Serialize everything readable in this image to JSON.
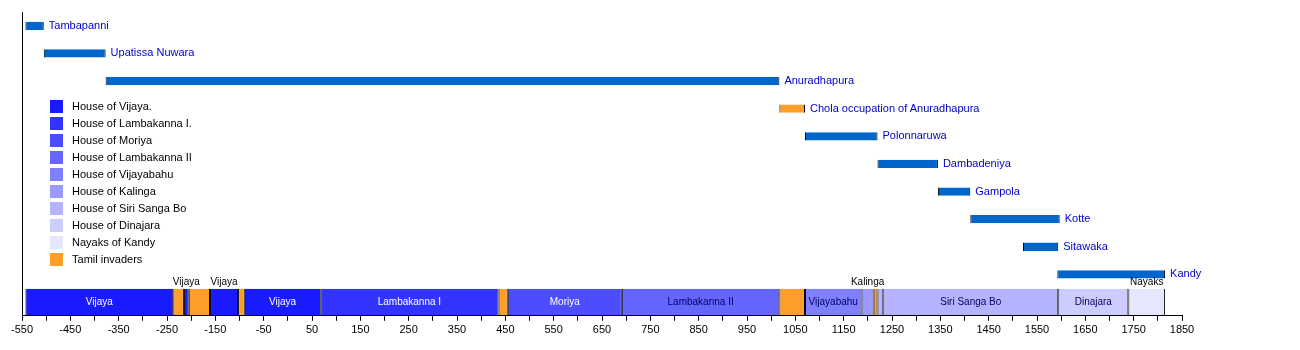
{
  "chart_data": {
    "type": "bar",
    "orientation": "horizontal",
    "categories": [
      "Tambapanni",
      "Upatissa Nuwara",
      "Anuradhapura",
      "Chola occupation of Anuradhapura",
      "Polonnaruwa",
      "Dambadeniya",
      "Gampola",
      "Kotte",
      "Sitawaka",
      "Kandy",
      null
    ],
    "xlim": [
      -550,
      1850
    ],
    "xticks": [
      -550,
      {
        "value": -500,
        "label": null
      },
      -450,
      {
        "value": -400,
        "label": null
      },
      -350,
      {
        "value": -300,
        "label": null
      },
      -250,
      {
        "value": -200,
        "label": null
      },
      -150,
      {
        "value": -100,
        "label": null
      },
      -50,
      {
        "value": 0,
        "label": null
      },
      50,
      {
        "value": 100,
        "label": null
      },
      150,
      {
        "value": 200,
        "label": null
      },
      250,
      {
        "value": 300,
        "label": null
      },
      350,
      {
        "value": 400,
        "label": null
      },
      450,
      {
        "value": 500,
        "label": null
      },
      550,
      {
        "value": 600,
        "label": null
      },
      650,
      {
        "value": 700,
        "label": null
      },
      750,
      {
        "value": 800,
        "label": null
      },
      850,
      {
        "value": 900,
        "label": null
      },
      950,
      {
        "value": 1000,
        "label": null
      },
      1050,
      {
        "value": 1100,
        "label": null
      },
      1150,
      {
        "value": 1200,
        "label": null
      },
      1250,
      {
        "value": 1300,
        "label": null
      },
      1350,
      {
        "value": 1400,
        "label": null
      },
      1450,
      {
        "value": 1500,
        "label": null
      },
      1550,
      {
        "value": 1600,
        "label": null
      },
      1650,
      {
        "value": 1700,
        "label": null
      },
      1750,
      {
        "value": 1800,
        "label": null
      },
      1850
    ],
    "grid": false,
    "legend": "left",
    "series": [
      {
        "colors": [
          "#0066cc",
          "#0066cc",
          "#0066cc",
          "#ff9f2a",
          "#0066cc",
          "#0066cc",
          "#0066cc",
          "#0066cc",
          "#0066cc",
          "#0066cc",
          null
        ],
        "base": [
          -543,
          -505,
          -377,
          1017,
          1070,
          1220,
          1345,
          1412,
          1521,
          1592,
          null
        ],
        "values": [
          38,
          128,
          1394,
          53,
          150,
          125,
          67,
          185,
          73,
          223,
          null
        ]
      },
      {
        "name": "House of Vijaya.",
        "color": "#1a1aff",
        "base": [
          null,
          null,
          null,
          null,
          null,
          null,
          null,
          null,
          null,
          null,
          -543
        ],
        "values": [
          null,
          null,
          null,
          null,
          null,
          null,
          null,
          null,
          null,
          null,
          306
        ],
        "value_labels": [
          null,
          null,
          null,
          null,
          null,
          null,
          null,
          null,
          null,
          null,
          "Vijaya"
        ]
      },
      {
        "name": "House of Lambakanna I.",
        "color": "#3333ff",
        "base": [
          null,
          null,
          null,
          null,
          null,
          null,
          null,
          null,
          null,
          null,
          67
        ],
        "values": [
          null,
          null,
          null,
          null,
          null,
          null,
          null,
          null,
          null,
          null,
          369
        ],
        "value_labels": [
          null,
          null,
          null,
          null,
          null,
          null,
          null,
          null,
          null,
          null,
          "Lambakanna I"
        ]
      },
      {
        "name": "House of Moriya",
        "color": "#4d4dff",
        "base": [
          null,
          null,
          null,
          null,
          null,
          null,
          null,
          null,
          null,
          null,
          455
        ],
        "values": [
          null,
          null,
          null,
          null,
          null,
          null,
          null,
          null,
          null,
          null,
          236
        ],
        "value_labels": [
          null,
          null,
          null,
          null,
          null,
          null,
          null,
          null,
          null,
          null,
          "Moriya"
        ]
      },
      {
        "name": "House of Lambakanna II",
        "color": "#6666ff",
        "base": [
          null,
          null,
          null,
          null,
          null,
          null,
          null,
          null,
          null,
          null,
          691
        ],
        "values": [
          null,
          null,
          null,
          null,
          null,
          null,
          null,
          null,
          null,
          null,
          326
        ],
        "value_labels": [
          null,
          null,
          null,
          null,
          null,
          null,
          null,
          null,
          null,
          null,
          "Lambakanna II"
        ]
      },
      {
        "name": "House of Vijayabahu",
        "color": "#8080ff",
        "base": [
          null,
          null,
          null,
          null,
          null,
          null,
          null,
          null,
          null,
          null,
          1070
        ],
        "values": [
          null,
          null,
          null,
          null,
          null,
          null,
          null,
          null,
          null,
          null,
          117
        ],
        "value_labels": [
          null,
          null,
          null,
          null,
          null,
          null,
          null,
          null,
          null,
          null,
          "Vijayabahu"
        ]
      },
      {
        "name": "House of Kalinga",
        "color": "#9999ff",
        "base": [
          null,
          null,
          null,
          null,
          null,
          null,
          null,
          null,
          null,
          null,
          1187
        ],
        "values": [
          null,
          null,
          null,
          null,
          null,
          null,
          null,
          null,
          null,
          null,
          25
        ],
        "value_labels": [
          null,
          null,
          null,
          null,
          null,
          null,
          null,
          null,
          null,
          null,
          "Kalinga"
        ]
      },
      {
        "name": "House of Siri Sanga Bo",
        "color": "#b3b3ff",
        "base": [
          null,
          null,
          null,
          null,
          null,
          null,
          null,
          null,
          null,
          null,
          1232
        ],
        "values": [
          null,
          null,
          null,
          null,
          null,
          null,
          null,
          null,
          null,
          null,
          362
        ],
        "value_labels": [
          null,
          null,
          null,
          null,
          null,
          null,
          null,
          null,
          null,
          null,
          "Siri Sanga Bo"
        ]
      },
      {
        "name": "House of Dinajara",
        "color": "#ccccff",
        "base": [
          null,
          null,
          null,
          null,
          null,
          null,
          null,
          null,
          null,
          null,
          1594
        ],
        "values": [
          null,
          null,
          null,
          null,
          null,
          null,
          null,
          null,
          null,
          null,
          145
        ],
        "value_labels": [
          null,
          null,
          null,
          null,
          null,
          null,
          null,
          null,
          null,
          null,
          "Dinajara"
        ]
      },
      {
        "name": "Nayaks of Kandy",
        "color": "#e6e6ff",
        "base": [
          null,
          null,
          null,
          null,
          null,
          null,
          null,
          null,
          null,
          null,
          1739
        ],
        "values": [
          null,
          null,
          null,
          null,
          null,
          null,
          null,
          null,
          null,
          null,
          76
        ],
        "value_labels": [
          null,
          null,
          null,
          null,
          null,
          null,
          null,
          null,
          null,
          null,
          "Nayaks"
        ]
      },
      {
        "name": "Tamil invaders",
        "color": "#ff9f2a",
        "base": [
          null,
          null,
          null,
          null,
          null,
          null,
          null,
          null,
          null,
          null,
          -237
        ],
        "values": [
          null,
          null,
          null,
          null,
          null,
          null,
          null,
          null,
          null,
          null,
          22
        ]
      },
      {
        "color": "#1a1aff",
        "base": [
          null,
          null,
          null,
          null,
          null,
          null,
          null,
          null,
          null,
          null,
          -215
        ],
        "values": [
          null,
          null,
          null,
          null,
          null,
          null,
          null,
          null,
          null,
          null,
          10
        ],
        "value_labels": [
          null,
          null,
          null,
          null,
          null,
          null,
          null,
          null,
          null,
          null,
          "Vijaya"
        ]
      },
      {
        "color": "#ff9f2a",
        "base": [
          null,
          null,
          null,
          null,
          null,
          null,
          null,
          null,
          null,
          null,
          -205
        ],
        "values": [
          null,
          null,
          null,
          null,
          null,
          null,
          null,
          null,
          null,
          null,
          44
        ]
      },
      {
        "color": "#1a1aff",
        "base": [
          null,
          null,
          null,
          null,
          null,
          null,
          null,
          null,
          null,
          null,
          -161
        ],
        "values": [
          null,
          null,
          null,
          null,
          null,
          null,
          null,
          null,
          null,
          null,
          58
        ],
        "value_labels": [
          null,
          null,
          null,
          null,
          null,
          null,
          null,
          null,
          null,
          null,
          "Vijaya"
        ]
      },
      {
        "color": "#ff9f2a",
        "base": [
          null,
          null,
          null,
          null,
          null,
          null,
          null,
          null,
          null,
          null,
          -103
        ],
        "values": [
          null,
          null,
          null,
          null,
          null,
          null,
          null,
          null,
          null,
          null,
          14
        ]
      },
      {
        "color": "#1a1aff",
        "base": [
          null,
          null,
          null,
          null,
          null,
          null,
          null,
          null,
          null,
          null,
          -89
        ],
        "values": [
          null,
          null,
          null,
          null,
          null,
          null,
          null,
          null,
          null,
          null,
          156
        ],
        "value_labels": [
          null,
          null,
          null,
          null,
          null,
          null,
          null,
          null,
          null,
          null,
          "Vijaya"
        ]
      },
      {
        "color": "#ff9f2a",
        "base": [
          null,
          null,
          null,
          null,
          null,
          null,
          null,
          null,
          null,
          null,
          436
        ],
        "values": [
          null,
          null,
          null,
          null,
          null,
          null,
          null,
          null,
          null,
          null,
          19
        ]
      },
      {
        "color": "#ff9f2a",
        "base": [
          null,
          null,
          null,
          null,
          null,
          null,
          null,
          null,
          null,
          null,
          1017
        ],
        "values": [
          null,
          null,
          null,
          null,
          null,
          null,
          null,
          null,
          null,
          null,
          53
        ]
      },
      {
        "color": "#ff9f2a",
        "base": [
          null,
          null,
          null,
          null,
          null,
          null,
          null,
          null,
          null,
          null,
          1212
        ],
        "values": [
          null,
          null,
          null,
          null,
          null,
          null,
          null,
          null,
          null,
          null,
          8
        ]
      },
      {
        "color": "#b3b3ff",
        "base": [
          null,
          null,
          null,
          null,
          null,
          null,
          null,
          null,
          null,
          null,
          1220
        ],
        "values": [
          null,
          null,
          null,
          null,
          null,
          null,
          null,
          null,
          null,
          null,
          12
        ]
      }
    ]
  }
}
